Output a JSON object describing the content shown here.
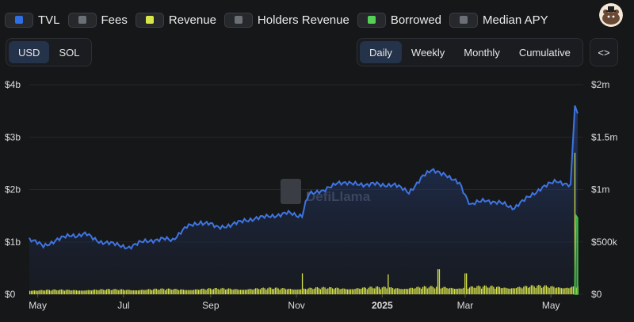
{
  "legend": [
    {
      "label": "TVL",
      "color": "#2f6fe4",
      "active": true
    },
    {
      "label": "Fees",
      "color": "#6b6f76",
      "active": false
    },
    {
      "label": "Revenue",
      "color": "#d8e64a",
      "active": true
    },
    {
      "label": "Holders Revenue",
      "color": "#6b6f76",
      "active": false
    },
    {
      "label": "Borrowed",
      "color": "#54d156",
      "active": true
    },
    {
      "label": "Median APY",
      "color": "#6b6f76",
      "active": false
    }
  ],
  "units": {
    "options": [
      "USD",
      "SOL"
    ],
    "selected": "USD"
  },
  "periods": {
    "options": [
      "Daily",
      "Weekly",
      "Monthly",
      "Cumulative"
    ],
    "selected": "Daily"
  },
  "embed_label": "<>",
  "watermark": "DefiLlama",
  "colors": {
    "tvl": "#3f74e0",
    "revenue": "#d4e04a",
    "borrowed": "#45c449",
    "background": "#161719"
  },
  "chart_data": {
    "type": "line",
    "x_range": [
      "2024-04-25",
      "2025-05-24"
    ],
    "left_axis": {
      "ticks": [
        0,
        1,
        2,
        3,
        4
      ],
      "tick_labels": [
        "$0",
        "$1b",
        "$2b",
        "$3b",
        "$4b"
      ],
      "ylim": [
        0,
        4
      ]
    },
    "right_axis": {
      "ticks": [
        0,
        0.5,
        1,
        1.5,
        2
      ],
      "tick_labels": [
        "$0",
        "$500k",
        "$1m",
        "$1.5m",
        "$2m"
      ],
      "ylim": [
        0,
        2
      ]
    },
    "x_ticks": [
      {
        "date": "2024-05-01",
        "label": "May",
        "bold": false
      },
      {
        "date": "2024-07-01",
        "label": "Jul",
        "bold": false
      },
      {
        "date": "2024-09-01",
        "label": "Sep",
        "bold": false
      },
      {
        "date": "2024-11-01",
        "label": "Nov",
        "bold": false
      },
      {
        "date": "2025-01-01",
        "label": "2025",
        "bold": true
      },
      {
        "date": "2025-03-01",
        "label": "Mar",
        "bold": false
      },
      {
        "date": "2025-05-01",
        "label": "May",
        "bold": false
      }
    ],
    "series": [
      {
        "name": "TVL",
        "axis": "left",
        "unit": "billion USD",
        "points": [
          [
            "2024-04-25",
            1.05
          ],
          [
            "2024-05-05",
            0.92
          ],
          [
            "2024-05-15",
            1.05
          ],
          [
            "2024-05-25",
            1.12
          ],
          [
            "2024-06-05",
            1.14
          ],
          [
            "2024-06-15",
            1.0
          ],
          [
            "2024-06-25",
            0.95
          ],
          [
            "2024-07-05",
            0.9
          ],
          [
            "2024-07-15",
            1.0
          ],
          [
            "2024-07-25",
            1.05
          ],
          [
            "2024-08-05",
            1.05
          ],
          [
            "2024-08-15",
            1.28
          ],
          [
            "2024-08-25",
            1.38
          ],
          [
            "2024-09-05",
            1.3
          ],
          [
            "2024-09-15",
            1.3
          ],
          [
            "2024-09-25",
            1.42
          ],
          [
            "2024-10-05",
            1.45
          ],
          [
            "2024-10-15",
            1.5
          ],
          [
            "2024-10-25",
            1.55
          ],
          [
            "2024-11-05",
            1.5
          ],
          [
            "2024-11-10",
            1.95
          ],
          [
            "2024-11-20",
            1.95
          ],
          [
            "2024-11-30",
            2.15
          ],
          [
            "2024-12-10",
            2.1
          ],
          [
            "2024-12-20",
            2.1
          ],
          [
            "2024-12-31",
            2.1
          ],
          [
            "2025-01-10",
            2.08
          ],
          [
            "2025-01-20",
            1.95
          ],
          [
            "2025-01-30",
            2.25
          ],
          [
            "2025-02-05",
            2.35
          ],
          [
            "2025-02-15",
            2.3
          ],
          [
            "2025-02-25",
            2.1
          ],
          [
            "2025-03-05",
            1.7
          ],
          [
            "2025-03-15",
            1.8
          ],
          [
            "2025-03-25",
            1.75
          ],
          [
            "2025-04-05",
            1.65
          ],
          [
            "2025-04-15",
            1.85
          ],
          [
            "2025-04-25",
            2.05
          ],
          [
            "2025-05-05",
            2.15
          ],
          [
            "2025-05-15",
            2.1
          ],
          [
            "2025-05-18",
            3.6
          ],
          [
            "2025-05-20",
            3.45
          ]
        ]
      },
      {
        "name": "Revenue",
        "axis": "right",
        "unit": "million USD",
        "typical_daily_range": [
          0.02,
          0.12
        ],
        "spikes": [
          [
            "2024-11-05",
            0.2
          ],
          [
            "2025-01-05",
            0.19
          ],
          [
            "2025-02-10",
            0.24
          ],
          [
            "2025-03-01",
            0.2
          ],
          [
            "2025-05-18",
            1.35
          ]
        ]
      },
      {
        "name": "Borrowed",
        "axis": "right",
        "unit": "million USD",
        "points": [
          [
            "2025-05-18",
            0.1
          ],
          [
            "2025-05-19",
            0.75
          ],
          [
            "2025-05-20",
            0.73
          ]
        ]
      }
    ]
  }
}
